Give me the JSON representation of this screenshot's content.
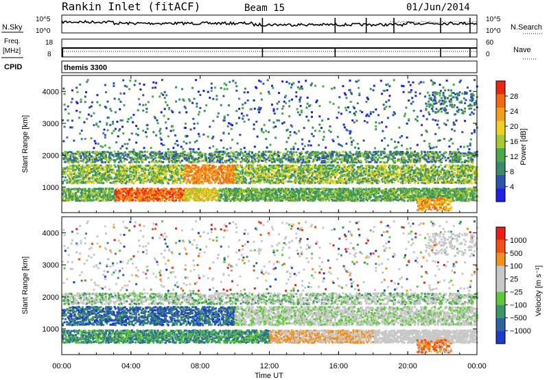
{
  "header": {
    "station": "Rankin Inlet (fitACF)",
    "beam": "Beam 15",
    "date": "01/Jun/2014"
  },
  "noise_panel": {
    "left_label": "N.Sky",
    "right_label": "N.Search",
    "left_ticks": [
      "10^5",
      "10^0"
    ],
    "right_ticks": [
      "10^5",
      "10^0"
    ]
  },
  "freq_panel": {
    "left_label_1": "Freq.",
    "left_label_2": "[MHz]",
    "right_label": "Nave",
    "left_ticks": [
      "18",
      "8"
    ],
    "right_ticks": [
      "60",
      "0"
    ]
  },
  "cpid": {
    "label": "CPID",
    "mode": "themis 3300"
  },
  "colors": {
    "power": [
      "#1f1fe6",
      "#2c54a8",
      "#3c8a6a",
      "#4fa84a",
      "#a6c832",
      "#f0d21e",
      "#f0a01e",
      "#f06a14",
      "#e62814"
    ],
    "velocity": [
      "#e61e1e",
      "#f05014",
      "#f0901e",
      "#c8c8c8",
      "#c8c8c8",
      "#5fc83c",
      "#3c9664",
      "#2d64a0",
      "#1e3cc8"
    ]
  },
  "chart_data": [
    {
      "type": "heatmap",
      "name": "power",
      "ylabel": "Slant Range [km]",
      "y_ticks": [
        "1000",
        "2000",
        "3000",
        "4000"
      ],
      "ylim": [
        200,
        4500
      ],
      "xlim": [
        0,
        24
      ],
      "colorbar_label": "Power [dB]",
      "colorbar_ticks": [
        "28",
        "24",
        "20",
        "16",
        "12",
        "8",
        "4"
      ],
      "clim": [
        0,
        32
      ]
    },
    {
      "type": "heatmap",
      "name": "velocity",
      "ylabel": "Slant Range [km]",
      "y_ticks": [
        "1000",
        "2000",
        "3000",
        "4000"
      ],
      "ylim": [
        200,
        4500
      ],
      "xlim": [
        0,
        24
      ],
      "colorbar_label": "Velocity [m s⁻¹]",
      "colorbar_ticks": [
        "1000",
        "500",
        "100",
        "25",
        "−25",
        "−100",
        "−500",
        "−1000"
      ]
    }
  ],
  "x_axis": {
    "label": "Time UT",
    "ticks": [
      "00:00",
      "04:00",
      "08:00",
      "12:00",
      "16:00",
      "20:00",
      "00:00"
    ]
  }
}
